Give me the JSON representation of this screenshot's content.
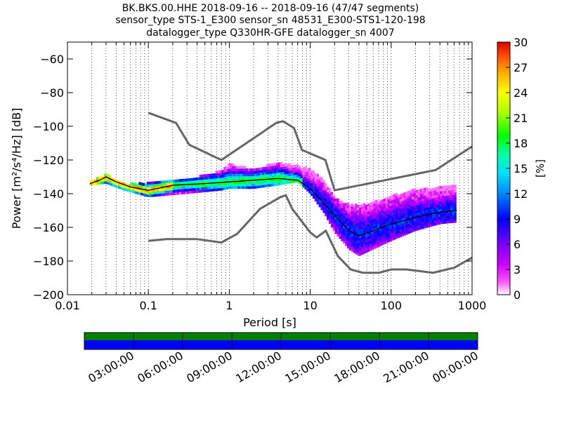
{
  "title_lines": [
    "BK.BKS.00.HHE   2018-09-16 -- 2018-09-16  (47/47 segments)",
    "sensor_type STS-1_E300 sensor_sn 48531_E300-STS1-120-198",
    "datalogger_type Q330HR-GFE datalogger_sn 4007"
  ],
  "chart_data": {
    "type": "heatmap",
    "xlabel": "Period [s]",
    "ylabel": "Power [m²/s⁴/Hz] [dB]",
    "x_scale": "log",
    "xlim": [
      0.01,
      1000
    ],
    "ylim": [
      -200,
      -50
    ],
    "x_ticks": [
      0.01,
      0.1,
      1,
      10,
      100,
      1000
    ],
    "x_tick_labels": [
      "0.01",
      "0.1",
      "1",
      "10",
      "100",
      "1000"
    ],
    "y_ticks": [
      -200,
      -180,
      -160,
      -140,
      -120,
      -100,
      -80,
      -60
    ],
    "y_tick_labels": [
      "−200",
      "−180",
      "−160",
      "−140",
      "−120",
      "−100",
      "−80",
      "−60"
    ],
    "grid": "dotted vertical lines at log-decade subdivisions",
    "colorbar": {
      "label": "[%]",
      "range": [
        0,
        30
      ],
      "ticks": [
        "0",
        "3",
        "6",
        "9",
        "12",
        "15",
        "18",
        "21",
        "24",
        "27",
        "30"
      ]
    },
    "series": [
      {
        "role": "mode",
        "color": "#000000",
        "points": [
          [
            0.019,
            -134
          ],
          [
            0.025,
            -132
          ],
          [
            0.03,
            -130
          ],
          [
            0.04,
            -133
          ],
          [
            0.06,
            -136
          ],
          [
            0.1,
            -138
          ],
          [
            0.2,
            -135
          ],
          [
            0.5,
            -134
          ],
          [
            1,
            -133
          ],
          [
            2,
            -132
          ],
          [
            4,
            -131
          ],
          [
            7,
            -132
          ],
          [
            10,
            -137
          ],
          [
            15,
            -146
          ],
          [
            20,
            -153
          ],
          [
            30,
            -162
          ],
          [
            40,
            -165
          ],
          [
            60,
            -162
          ],
          [
            100,
            -158
          ],
          [
            200,
            -154
          ],
          [
            400,
            -151
          ],
          [
            650,
            -150
          ]
        ]
      },
      {
        "role": "upper-noise-model",
        "color": "#666666",
        "points": [
          [
            0.1,
            -92
          ],
          [
            0.22,
            -98
          ],
          [
            0.32,
            -111
          ],
          [
            0.8,
            -120
          ],
          [
            3.8,
            -98
          ],
          [
            4.6,
            -97
          ],
          [
            6.3,
            -101
          ],
          [
            7.9,
            -114
          ],
          [
            15.4,
            -120
          ],
          [
            20,
            -138
          ],
          [
            354,
            -126
          ],
          [
            1000,
            -112
          ]
        ]
      },
      {
        "role": "lower-noise-model",
        "color": "#666666",
        "points": [
          [
            0.1,
            -168
          ],
          [
            0.17,
            -167
          ],
          [
            0.4,
            -167
          ],
          [
            0.8,
            -169
          ],
          [
            1.24,
            -164
          ],
          [
            2.4,
            -149
          ],
          [
            4.3,
            -142
          ],
          [
            5,
            -141
          ],
          [
            6,
            -149
          ],
          [
            10,
            -163
          ],
          [
            12,
            -166
          ],
          [
            15.6,
            -162
          ],
          [
            21.9,
            -177
          ],
          [
            31.6,
            -185
          ],
          [
            45,
            -187
          ],
          [
            70,
            -187
          ],
          [
            101,
            -185
          ],
          [
            154,
            -185
          ],
          [
            328,
            -187
          ],
          [
            600,
            -184
          ],
          [
            1000,
            -178
          ]
        ]
      }
    ],
    "density_band": {
      "description": "2-D histogram of PSD occurrence (%), colored by colorbar",
      "upper": [
        [
          0.019,
          -133
        ],
        [
          0.03,
          -129
        ],
        [
          0.05,
          -135
        ],
        [
          0.1,
          -134
        ],
        [
          0.3,
          -132
        ],
        [
          0.8,
          -127
        ],
        [
          1,
          -123
        ],
        [
          2,
          -126
        ],
        [
          4,
          -122
        ],
        [
          7,
          -124
        ],
        [
          10,
          -126
        ],
        [
          15,
          -133
        ],
        [
          20,
          -143
        ],
        [
          30,
          -147
        ],
        [
          50,
          -147
        ],
        [
          100,
          -142
        ],
        [
          200,
          -138
        ],
        [
          650,
          -136
        ]
      ],
      "lower": [
        [
          0.019,
          -135
        ],
        [
          0.03,
          -134
        ],
        [
          0.05,
          -138
        ],
        [
          0.1,
          -142
        ],
        [
          0.3,
          -140
        ],
        [
          0.8,
          -138
        ],
        [
          1,
          -137
        ],
        [
          2,
          -137
        ],
        [
          4,
          -135
        ],
        [
          7,
          -133
        ],
        [
          10,
          -140
        ],
        [
          15,
          -152
        ],
        [
          20,
          -163
        ],
        [
          30,
          -173
        ],
        [
          40,
          -177
        ],
        [
          60,
          -173
        ],
        [
          100,
          -168
        ],
        [
          200,
          -162
        ],
        [
          400,
          -158
        ],
        [
          650,
          -157
        ]
      ]
    }
  },
  "timeline": {
    "labels": [
      "03:00:00",
      "06:00:00",
      "09:00:00",
      "12:00:00",
      "15:00:00",
      "18:00:00",
      "21:00:00",
      "00:00:00"
    ],
    "top_color": "#008000",
    "bottom_color": "#0000ff"
  }
}
